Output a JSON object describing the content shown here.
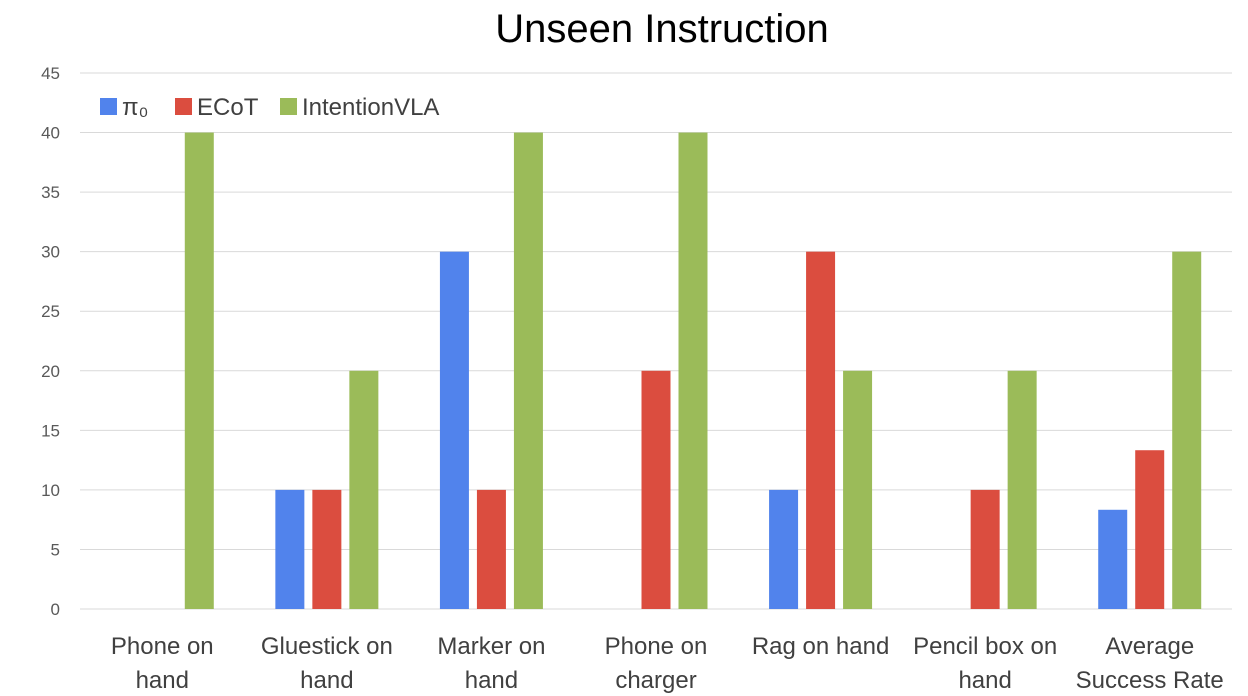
{
  "chart_data": {
    "type": "bar",
    "title": "Unseen Instruction",
    "xlabel": "",
    "ylabel": "",
    "ylim": [
      0,
      45
    ],
    "yticks": [
      0,
      5,
      10,
      15,
      20,
      25,
      30,
      35,
      40,
      45
    ],
    "grid": true,
    "legend_position": "top-left",
    "categories": [
      [
        "Phone on",
        "hand"
      ],
      [
        "Gluestick on",
        "hand"
      ],
      [
        "Marker on",
        "hand"
      ],
      [
        "Phone on",
        "charger"
      ],
      [
        "Rag on hand"
      ],
      [
        "Pencil box on",
        "hand"
      ],
      [
        "Average",
        "Success Rate"
      ]
    ],
    "series": [
      {
        "name": "π₀",
        "color": "#5183ec",
        "values": [
          0,
          10,
          30,
          0,
          10,
          0,
          8.33
        ]
      },
      {
        "name": "ECoT",
        "color": "#db4d3f",
        "values": [
          0,
          10,
          10,
          20,
          30,
          10,
          13.33
        ]
      },
      {
        "name": "IntentionVLA",
        "color": "#9bbb59",
        "values": [
          40,
          20,
          40,
          40,
          20,
          20,
          30
        ]
      }
    ]
  }
}
